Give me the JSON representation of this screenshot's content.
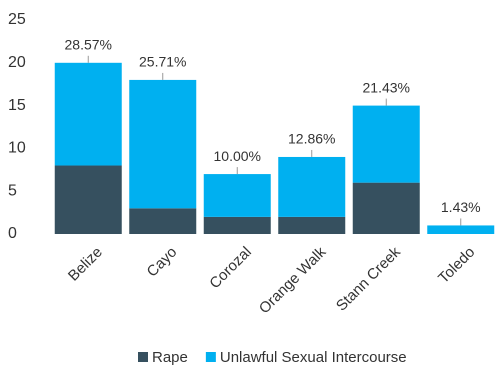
{
  "chart_data": {
    "type": "stacked-bar",
    "categories": [
      "Belize",
      "Cayo",
      "Corozal",
      "Orange Walk",
      "Stann Creek",
      "Toledo"
    ],
    "series": [
      {
        "name": "Rape",
        "color": "#36505f",
        "values": [
          8,
          3,
          2,
          2,
          6,
          0
        ]
      },
      {
        "name": "Unlawful Sexual Intercourse",
        "color": "#00b0f0",
        "values": [
          12,
          15,
          5,
          7,
          9,
          1
        ]
      }
    ],
    "share_labels": [
      "28.57%",
      "25.71%",
      "10.00%",
      "12.86%",
      "21.43%",
      "1.43%"
    ],
    "ylim": [
      0,
      25
    ],
    "yticks": [
      0,
      5,
      10,
      15,
      20,
      25
    ],
    "grid": false,
    "legend": "bottom"
  }
}
